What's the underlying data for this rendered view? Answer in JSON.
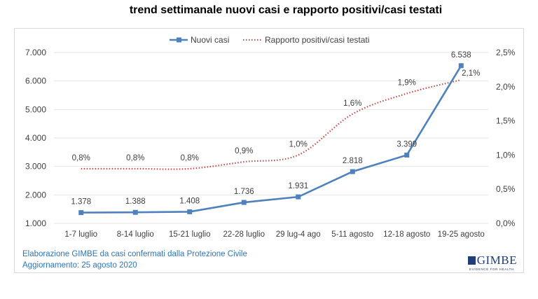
{
  "chart_data": {
    "type": "line",
    "title": "trend settimanale nuovi casi e rapporto positivi/casi testati",
    "categories": [
      "1-7 luglio",
      "8-14 luglio",
      "15-21 luglio",
      "22-28 luglio",
      "29 lug-4 ago",
      "5-11 agosto",
      "12-18 agosto",
      "19-25 agosto"
    ],
    "y_left": {
      "ticks": [
        "1.000",
        "2.000",
        "3.000",
        "4.000",
        "5.000",
        "6.000",
        "7.000"
      ],
      "range": [
        1000,
        7000
      ]
    },
    "y_right": {
      "ticks": [
        "0,0%",
        "0,5%",
        "1,0%",
        "1,5%",
        "2,0%",
        "2,5%"
      ],
      "range": [
        0,
        2.5
      ]
    },
    "grid": true,
    "legend_placement": "top",
    "series": [
      {
        "name": "Nuovi casi",
        "axis": "left",
        "style": "solid-square-markers",
        "color": "#4f81bd",
        "values": [
          1378,
          1388,
          1408,
          1736,
          1931,
          2818,
          3399,
          6538
        ],
        "labels": [
          "1.378",
          "1.388",
          "1.408",
          "1.736",
          "1.931",
          "2.818",
          "3.399",
          "6.538"
        ]
      },
      {
        "name": "Rapporto positivi/casi testati",
        "axis": "right",
        "style": "dotted",
        "color": "#c0504d",
        "values": [
          0.8,
          0.8,
          0.8,
          0.9,
          1.0,
          1.6,
          1.9,
          2.1
        ],
        "labels": [
          "0,8%",
          "0,8%",
          "0,8%",
          "0,9%",
          "1,0%",
          "1,6%",
          "1,9%",
          "2,1%"
        ]
      }
    ]
  },
  "footer": {
    "source": "Elaborazione GIMBE da casi confermati dalla Protezione Civile",
    "updated": "Aggiornamento: 25 agosto 2020"
  },
  "logo": {
    "name": "GIMBE",
    "tagline": "EVIDENCE FOR HEALTH"
  }
}
